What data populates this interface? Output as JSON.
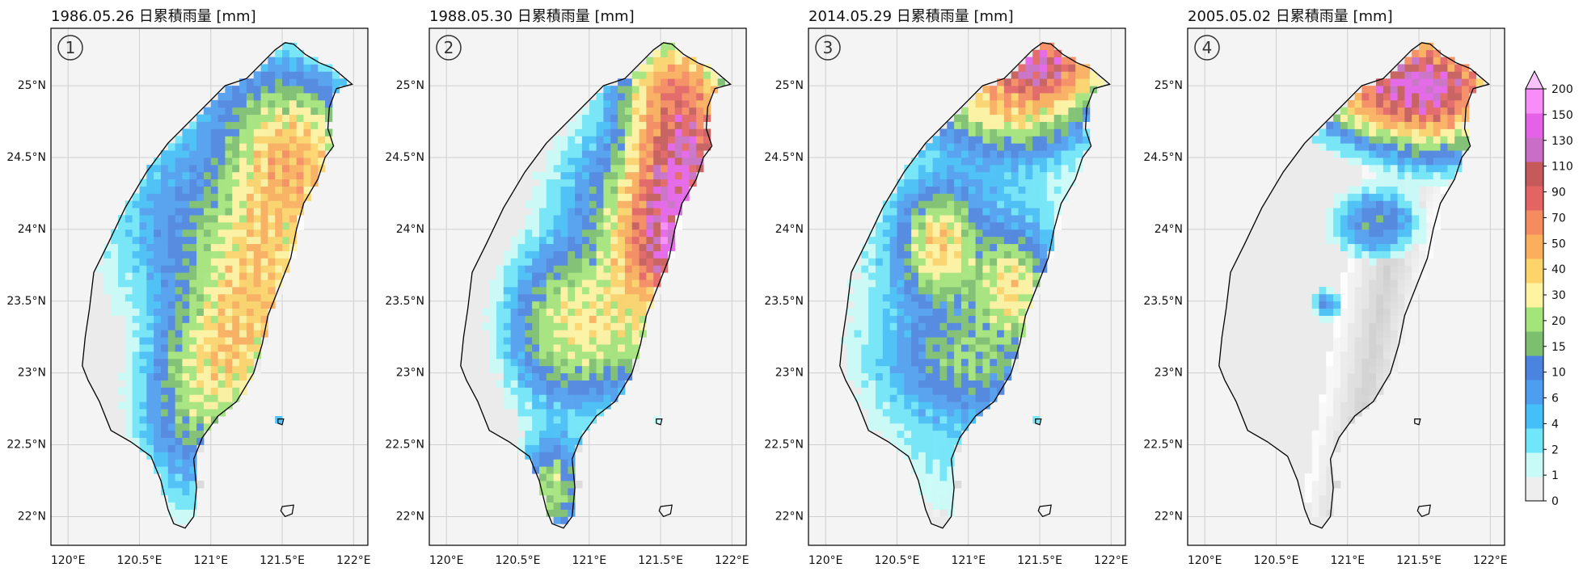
{
  "panels": [
    {
      "title": "1986.05.26  日累積雨量 [mm]",
      "badge": "①"
    },
    {
      "title": "1988.05.30  日累積雨量 [mm]",
      "badge": "②"
    },
    {
      "title": "2014.05.29  日累積雨量 [mm]",
      "badge": "③"
    },
    {
      "title": "2005.05.02  日累積雨量 [mm]",
      "badge": "④"
    }
  ],
  "axes": {
    "lon_ticks": [
      "120°E",
      "120.5°E",
      "121°E",
      "121.5°E",
      "122°E"
    ],
    "lat_ticks": [
      "25°N",
      "24.5°N",
      "24°N",
      "23.5°N",
      "23°N",
      "22.5°N",
      "22°N"
    ]
  },
  "colorbar": {
    "labels": [
      "0",
      "1",
      "2",
      "4",
      "6",
      "10",
      "15",
      "20",
      "30",
      "40",
      "50",
      "70",
      "90",
      "110",
      "130",
      "150",
      "200"
    ],
    "colors": [
      "#eeeeee",
      "#c8fbf8",
      "#6fe6f9",
      "#45bff7",
      "#4d9df0",
      "#4b84e0",
      "#7cbf6e",
      "#a3e57a",
      "#fdf3a0",
      "#fcd469",
      "#fbaf5c",
      "#f68b5f",
      "#e46464",
      "#c65a5a",
      "#c86ec6",
      "#e562e8",
      "#f88cf8"
    ],
    "extend_color": "#f9c2fb"
  }
}
